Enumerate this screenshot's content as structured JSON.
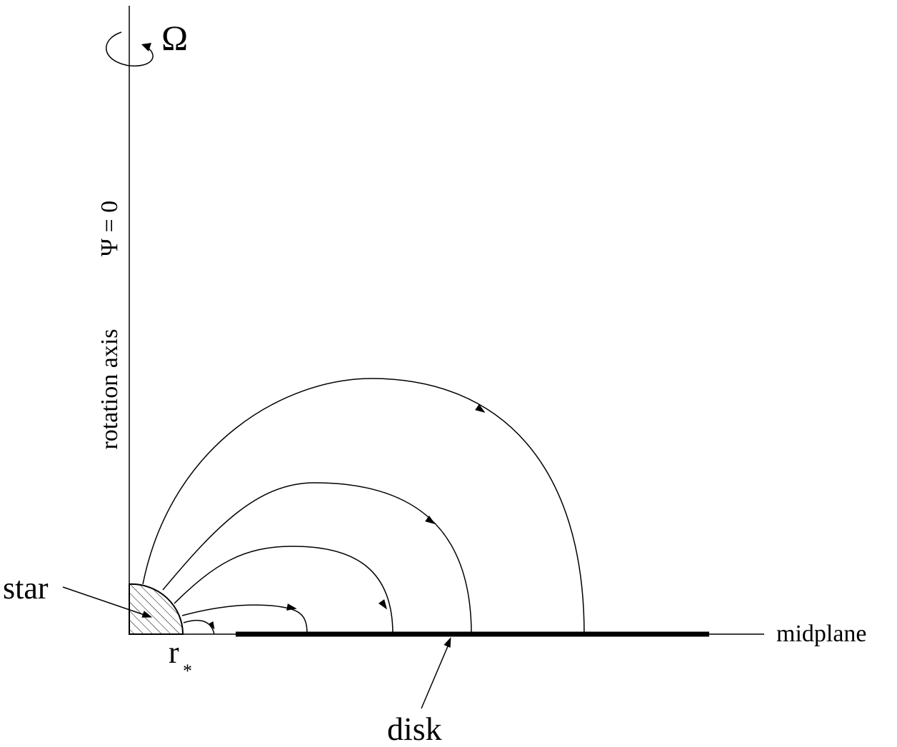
{
  "labels": {
    "omega": "Ω",
    "psi": "Ψ = 0",
    "axis": "rotation axis",
    "star": "star",
    "r": "r",
    "r_sub": "*",
    "midplane": "midplane",
    "disk": "disk"
  }
}
